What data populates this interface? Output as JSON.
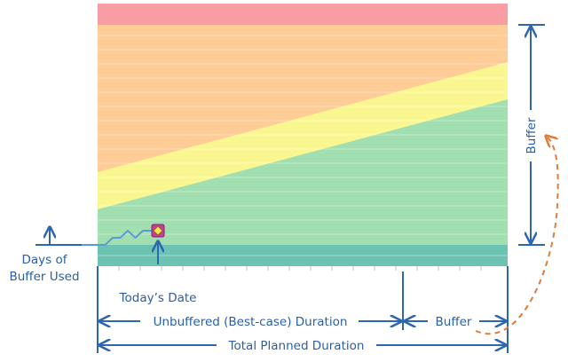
{
  "labels": {
    "days_of_buffer_used": [
      "Days of",
      "Buffer Used"
    ],
    "todays_date": "Today’s Date",
    "unbuffered_duration": "Unbuffered (Best-case) Duration",
    "buffer_bottom": "Buffer",
    "total_planned_duration": "Total Planned Duration",
    "buffer_side": "Buffer"
  },
  "colors": {
    "red_zone": "#f99da4",
    "orange_zone": "#fdcc97",
    "yellow_zone": "#fbf790",
    "green_zone": "#a2dfb0",
    "teal_zone": "#6dc3b2",
    "axis_blue": "#2f66b0",
    "label_blue": "#2a5fa6",
    "progress_line": "#5b9bd5",
    "marker_fill": "#cc3a9a",
    "marker_inner": "#f5e44d",
    "arrow_orange": "#e07b39"
  },
  "progress_line": {
    "x": [
      0,
      1,
      2,
      3,
      4,
      5,
      6,
      7,
      8
    ],
    "y": [
      0,
      0,
      1,
      1,
      2,
      1,
      2,
      2,
      2
    ]
  }
}
